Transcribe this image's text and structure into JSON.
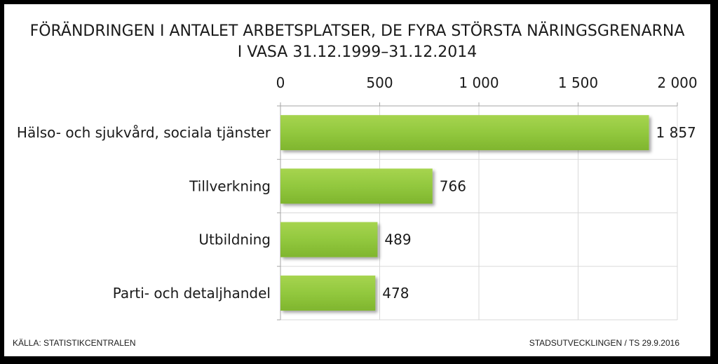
{
  "chart_data": {
    "type": "bar",
    "orientation": "horizontal",
    "title": "FÖRÄNDRINGEN I ANTALET ARBETSPLATSER, DE FYRA STÖRSTA NÄRINGSGRENARNA",
    "subtitle": "I VASA 31.12.1999–31.12.2014",
    "categories": [
      "Hälso- och sjukvård, sociala tjänster",
      "Tillverkning",
      "Utbildning",
      "Parti- och detaljhandel"
    ],
    "values": [
      1857,
      766,
      489,
      478
    ],
    "value_labels": [
      "1 857",
      "766",
      "489",
      "478"
    ],
    "xlim": [
      0,
      2000
    ],
    "x_ticks": [
      0,
      500,
      1000,
      1500,
      2000
    ],
    "x_tick_labels": [
      "0",
      "500",
      "1 000",
      "1 500",
      "2 000"
    ],
    "x_axis_position": "top",
    "grid": true,
    "legend": "none",
    "bar_color": "#92c83e"
  },
  "footer": {
    "source": "KÄLLA: STATISTIKCENTRALEN",
    "credit": "STADSUTVECKLINGEN / TS 29.9.2016"
  }
}
